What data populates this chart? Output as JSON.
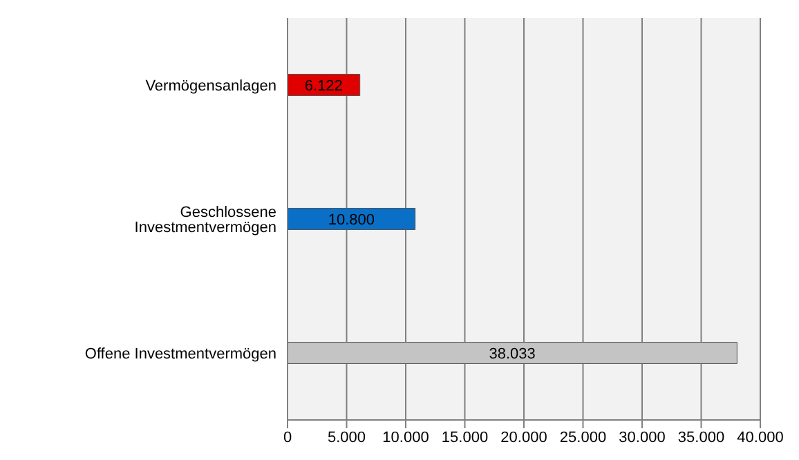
{
  "chart_data": {
    "type": "bar",
    "orientation": "horizontal",
    "categories": [
      "Vermögensanlagen",
      "Geschlossene Investmentvermögen",
      "Offene Investmentvermögen"
    ],
    "values": [
      6122,
      10800,
      38033
    ],
    "colors": [
      "#e00000",
      "#0a6fc6",
      "#c4c4c4"
    ],
    "value_labels": [
      "6.122",
      "10.800",
      "38.033"
    ],
    "xlim": [
      0,
      40000
    ],
    "xticks": [
      0,
      {
        "value": 5000,
        "label": "5.000"
      },
      {
        "value": 10000,
        "label": "10.000"
      },
      {
        "value": 15000,
        "label": "15.000"
      },
      {
        "value": 20000,
        "label": "20.000"
      },
      {
        "value": 25000,
        "label": "25.000"
      },
      {
        "value": 30000,
        "label": "30.000"
      },
      {
        "value": 35000,
        "label": "35.000"
      },
      {
        "value": 40000,
        "label": "40.000"
      }
    ],
    "grid": "x",
    "legend": false
  }
}
